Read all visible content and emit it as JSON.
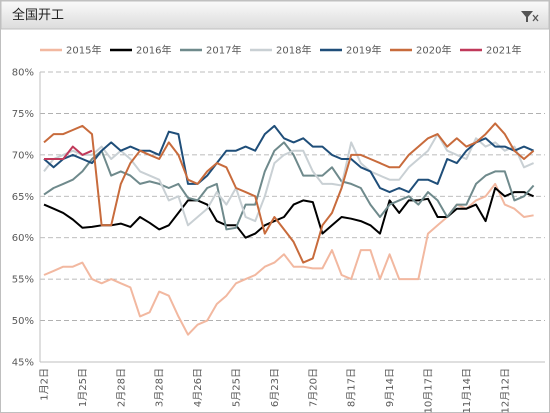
{
  "panel_title": "全国开工",
  "chart_data": {
    "type": "line",
    "categories": [
      "1月2日",
      null,
      null,
      null,
      "1月25日",
      null,
      null,
      null,
      "2月28日",
      null,
      null,
      null,
      "3月28日",
      null,
      null,
      null,
      "4月26日",
      null,
      null,
      null,
      "5月25日",
      null,
      null,
      null,
      "6月23日",
      null,
      null,
      null,
      "7月20日",
      null,
      null,
      null,
      "8月17日",
      null,
      null,
      null,
      "9月14日",
      null,
      null,
      null,
      "10月17日",
      null,
      null,
      null,
      "11月14日",
      null,
      null,
      null,
      "12月12日",
      null,
      null,
      null
    ],
    "ylim": [
      45,
      80
    ],
    "yticks": [
      {
        "value": 45,
        "label": "45%"
      },
      {
        "value": 50,
        "label": "50%"
      },
      {
        "value": 55,
        "label": "55%"
      },
      {
        "value": 60,
        "label": "60%"
      },
      {
        "value": 65,
        "label": "65%"
      },
      {
        "value": 70,
        "label": "70%"
      },
      {
        "value": 75,
        "label": "75%"
      },
      {
        "value": 80,
        "label": "80%"
      }
    ],
    "grid": true,
    "legend": "top",
    "series": [
      {
        "name": "2015年",
        "color": "#f2b8a0",
        "values": [
          55.5,
          56,
          56.5,
          56.5,
          57,
          55,
          54.5,
          55,
          54.5,
          54,
          50.5,
          51,
          53.5,
          53,
          50.5,
          48.3,
          49.5,
          50,
          52,
          53,
          54.5,
          55,
          55.5,
          56.5,
          57,
          58,
          56.5,
          56.5,
          56.3,
          56.3,
          58.5,
          55.5,
          55,
          58.5,
          58.5,
          55,
          58,
          55,
          55,
          55,
          60.5,
          61.5,
          62.5,
          64,
          63.5,
          64.5,
          65,
          66.5,
          64,
          63.5,
          62.5,
          62.7
        ]
      },
      {
        "name": "2016年",
        "color": "#000000",
        "values": [
          64,
          63.5,
          63,
          62.2,
          61.2,
          61.3,
          61.5,
          61.5,
          61.7,
          61.3,
          62.5,
          61.8,
          61,
          61.5,
          63,
          64.5,
          64.5,
          64,
          62,
          61.5,
          61.5,
          60,
          60.5,
          61.5,
          62,
          62.5,
          64,
          64.5,
          64.3,
          60.5,
          61.5,
          62.5,
          62.3,
          62,
          61.5,
          60.5,
          64.5,
          63,
          64.5,
          64.5,
          64.7,
          62.5,
          62.5,
          63.5,
          63.5,
          64,
          62,
          66,
          65,
          65.5,
          65.5,
          65
        ]
      },
      {
        "name": "2017年",
        "color": "#6f8a8c",
        "values": [
          65.2,
          66,
          66.5,
          67,
          68,
          69.5,
          70.5,
          67.5,
          68,
          67.5,
          66.5,
          66.8,
          66.5,
          66,
          66.5,
          64.8,
          64.5,
          66,
          66.5,
          61,
          61.2,
          64,
          64,
          68,
          70.5,
          71.5,
          70,
          67.5,
          67.5,
          67.5,
          68.5,
          66.8,
          66.5,
          66,
          64,
          62.5,
          64,
          64.5,
          65,
          64,
          65.5,
          64.5,
          62.5,
          64,
          64,
          66.5,
          67.5,
          68,
          68,
          64.5,
          65,
          66.3
        ]
      },
      {
        "name": "2018年",
        "color": "#c9d0d4",
        "values": [
          68,
          69.5,
          70,
          70.5,
          70,
          70,
          71,
          69.5,
          70.5,
          69.5,
          68,
          67.5,
          67,
          64.5,
          65,
          61.5,
          62.5,
          63.5,
          65.5,
          64,
          66,
          62.5,
          62,
          65,
          69,
          70,
          70.5,
          70.5,
          68,
          66.5,
          66.5,
          66.3,
          71.5,
          69,
          68,
          67.5,
          67,
          67,
          68.5,
          69.5,
          70.5,
          72.5,
          70.5,
          70,
          69.5,
          72,
          71,
          71.5,
          70.5,
          71,
          68.5,
          69
        ]
      },
      {
        "name": "2019年",
        "color": "#1f4e79",
        "values": [
          69.5,
          68.5,
          69.5,
          70,
          69.5,
          69,
          70.5,
          71.5,
          70.5,
          71,
          70.5,
          70.5,
          70,
          72.8,
          72.5,
          66.5,
          66.5,
          67.5,
          69,
          70.5,
          70.5,
          71,
          70.5,
          72.5,
          73.5,
          72,
          71.5,
          72,
          71,
          71,
          70,
          69.5,
          69.5,
          68.5,
          68,
          66,
          65.5,
          66,
          65.5,
          67,
          67,
          66.5,
          69.5,
          69,
          70.5,
          71.5,
          72,
          71,
          71,
          70.5,
          71,
          70.5
        ]
      },
      {
        "name": "2020年",
        "color": "#c86b3c",
        "values": [
          71.5,
          72.5,
          72.5,
          73,
          73.5,
          72.5,
          61.5,
          61.5,
          66.5,
          69,
          70.5,
          70,
          69.5,
          71.5,
          70,
          67,
          66.5,
          68,
          69,
          68.5,
          66,
          65.5,
          65,
          60.5,
          62.5,
          61,
          59.5,
          57,
          57.5,
          61.5,
          63,
          66,
          70,
          70,
          69.5,
          69,
          68.5,
          68.5,
          70,
          71,
          72,
          72.5,
          71,
          72,
          71,
          71.5,
          72.5,
          73.8,
          72.5,
          70.5,
          69.5,
          70.5
        ]
      },
      {
        "name": "2021年",
        "color": "#c0395a",
        "values": [
          69.5,
          69.5,
          69.5,
          71,
          70,
          70.5,
          null,
          null,
          null,
          null,
          null,
          null,
          null,
          null,
          null,
          null,
          null,
          null,
          null,
          null,
          null,
          null,
          null,
          null,
          null,
          null,
          null,
          null,
          null,
          null,
          null,
          null,
          null,
          null,
          null,
          null,
          null,
          null,
          null,
          null,
          null,
          null,
          null,
          null,
          null,
          null,
          null,
          null,
          null,
          null,
          null,
          null
        ]
      }
    ]
  }
}
